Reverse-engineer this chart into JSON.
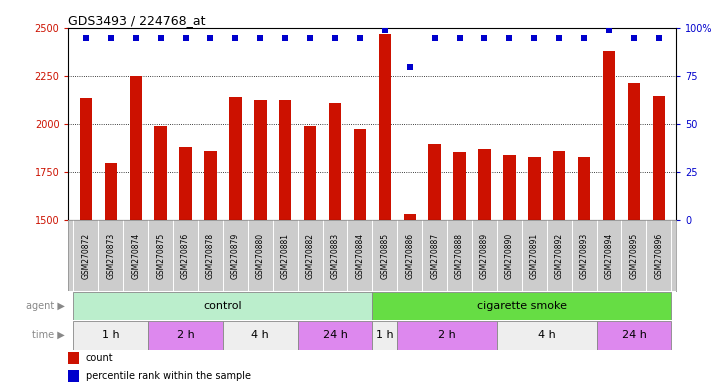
{
  "title": "GDS3493 / 224768_at",
  "samples": [
    "GSM270872",
    "GSM270873",
    "GSM270874",
    "GSM270875",
    "GSM270876",
    "GSM270878",
    "GSM270879",
    "GSM270880",
    "GSM270881",
    "GSM270882",
    "GSM270883",
    "GSM270884",
    "GSM270885",
    "GSM270886",
    "GSM270887",
    "GSM270888",
    "GSM270889",
    "GSM270890",
    "GSM270891",
    "GSM270892",
    "GSM270893",
    "GSM270894",
    "GSM270895",
    "GSM270896"
  ],
  "counts": [
    2135,
    1800,
    2250,
    1990,
    1880,
    1860,
    2145,
    2125,
    2125,
    1990,
    2110,
    1975,
    2470,
    1535,
    1900,
    1855,
    1870,
    1840,
    1830,
    1860,
    1830,
    2380,
    2215,
    2150
  ],
  "percentile_ranks": [
    95,
    95,
    95,
    95,
    95,
    95,
    95,
    95,
    95,
    95,
    95,
    95,
    99,
    80,
    95,
    95,
    95,
    95,
    95,
    95,
    95,
    99,
    95,
    95
  ],
  "ylim_left": [
    1500,
    2500
  ],
  "ylim_right": [
    0,
    100
  ],
  "yticks_left": [
    1500,
    1750,
    2000,
    2250,
    2500
  ],
  "yticks_right": [
    0,
    25,
    50,
    75,
    100
  ],
  "ytick_right_labels": [
    "0",
    "25",
    "50",
    "75",
    "100%"
  ],
  "bar_color": "#cc1100",
  "dot_color": "#0000cc",
  "grid_color": "#000000",
  "agent_groups": [
    {
      "label": "control",
      "start": 0,
      "end": 12,
      "color": "#bbeecc"
    },
    {
      "label": "cigarette smoke",
      "start": 12,
      "end": 24,
      "color": "#66dd44"
    }
  ],
  "time_groups": [
    {
      "label": "1 h",
      "start": 0,
      "end": 3,
      "color": "#eeeeee"
    },
    {
      "label": "2 h",
      "start": 3,
      "end": 6,
      "color": "#dd88ee"
    },
    {
      "label": "4 h",
      "start": 6,
      "end": 9,
      "color": "#eeeeee"
    },
    {
      "label": "24 h",
      "start": 9,
      "end": 12,
      "color": "#dd88ee"
    },
    {
      "label": "1 h",
      "start": 12,
      "end": 13,
      "color": "#eeeeee"
    },
    {
      "label": "2 h",
      "start": 13,
      "end": 17,
      "color": "#dd88ee"
    },
    {
      "label": "4 h",
      "start": 17,
      "end": 21,
      "color": "#eeeeee"
    },
    {
      "label": "24 h",
      "start": 21,
      "end": 24,
      "color": "#dd88ee"
    }
  ],
  "sample_bg": "#cccccc",
  "bar_width": 0.5,
  "fig_width": 7.21,
  "fig_height": 3.84,
  "dpi": 100
}
